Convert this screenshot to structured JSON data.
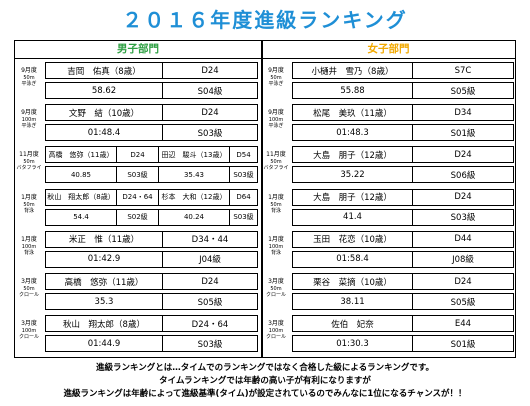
{
  "title": "２０１６年度進級ランキング",
  "boys_header": "男子部門",
  "girls_header": "女子部門",
  "colors": {
    "title": "#1f8fd6",
    "boys": "#2ea043",
    "girls": "#f2a900"
  },
  "rows": [
    {
      "label_top": "9月度",
      "label_sub": "50m\n平泳ぎ",
      "boys": {
        "name": "吉岡　佑真（8歳）",
        "course": "D24",
        "time": "58.62",
        "grade": "S04級"
      },
      "girls": {
        "name": "小樋井　雪乃（8歳）",
        "course": "S7C",
        "time": "55.88",
        "grade": "S05級"
      }
    },
    {
      "label_top": "9月度",
      "label_sub": "100m\n平泳ぎ",
      "boys": {
        "name": "文野　結（10歳）",
        "course": "D24",
        "time": "01:48.4",
        "grade": "S03級"
      },
      "girls": {
        "name": "松尾　美玖（11歳）",
        "course": "D34",
        "time": "01:48.3",
        "grade": "S01級"
      }
    },
    {
      "label_top": "11月度",
      "label_sub": "50m\nバタフライ",
      "boys_split": [
        {
          "name": "高橋　悠弥（11歳）",
          "course": "D24",
          "time": "40.85",
          "grade": "S03級"
        },
        {
          "name": "田辺　駿斗（13歳）",
          "course": "D54",
          "time": "35.43",
          "grade": "S03級"
        }
      ],
      "girls": {
        "name": "大島　朋子（12歳）",
        "course": "D24",
        "time": "35.22",
        "grade": "S06級"
      }
    },
    {
      "label_top": "1月度",
      "label_sub": "50m\n背泳",
      "boys_split": [
        {
          "name": "秋山　翔太郎（8歳）",
          "course": "D24・64",
          "time": "54.4",
          "grade": "S02級"
        },
        {
          "name": "杉本　大和（12歳）",
          "course": "D64",
          "time": "40.24",
          "grade": "S03級"
        }
      ],
      "girls": {
        "name": "大島　朋子（12歳）",
        "course": "D24",
        "time": "41.4",
        "grade": "S03級"
      }
    },
    {
      "label_top": "1月度",
      "label_sub": "100m\n背泳",
      "boys": {
        "name": "米正　惟（11歳）",
        "course": "D34・44",
        "time": "01:42.9",
        "grade": "J04級"
      },
      "girls": {
        "name": "玉田　花恋（10歳）",
        "course": "D44",
        "time": "01:58.4",
        "grade": "J08級"
      }
    },
    {
      "label_top": "3月度",
      "label_sub": "50m\nクロール",
      "boys": {
        "name": "高橋　悠弥（11歳）",
        "course": "D24",
        "time": "35.3",
        "grade": "S05級"
      },
      "girls": {
        "name": "栗谷　菜摘（10歳）",
        "course": "D24",
        "time": "38.11",
        "grade": "S05級"
      }
    },
    {
      "label_top": "3月度",
      "label_sub": "100m\nクロール",
      "boys": {
        "name": "秋山　翔太郎（8歳）",
        "course": "D24・64",
        "time": "01:44.9",
        "grade": "S03級"
      },
      "girls": {
        "name": "佐伯　妃奈",
        "course": "E44",
        "time": "01:30.3",
        "grade": "S01級"
      }
    }
  ],
  "footer": [
    "進級ランキングとは…タイムでのランキングではなく合格した級によるランキングです。",
    "タイムランキングでは年齢の高い子が有利になりますが",
    "進級ランキングは年齢によって進級基準(タイム)が設定されているのでみんなに1位になるチャンスが！！"
  ]
}
